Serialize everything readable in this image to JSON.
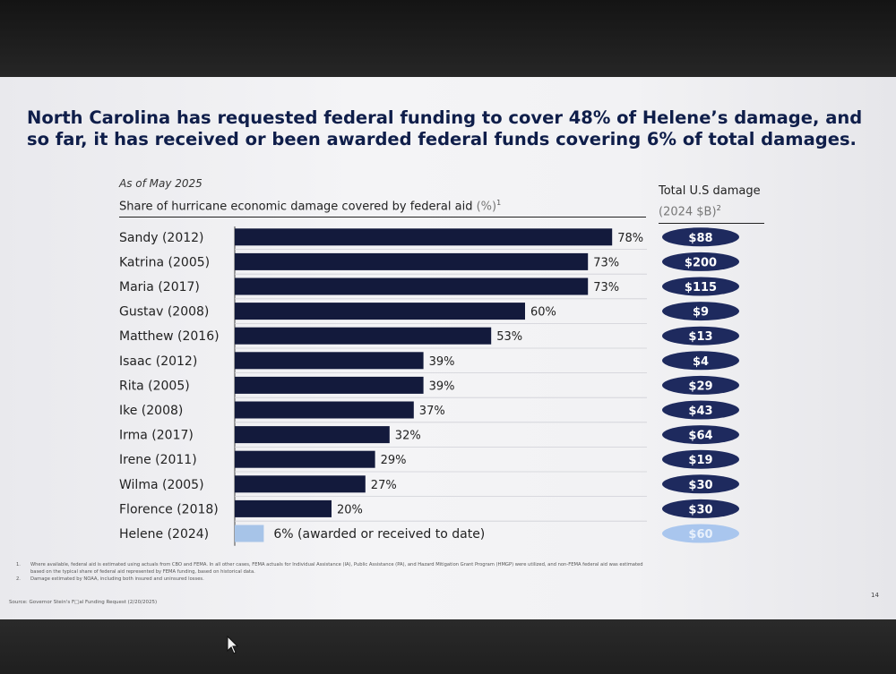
{
  "slide": {
    "title": "North Carolina has requested federal funding to cover 48% of Helene’s damage, and so far, it has received or been awarded federal funds covering 6% of total damages.",
    "subtitle": "As of May 2025",
    "chart_header": "Share of hurricane economic damage covered by federal aid",
    "chart_header_unit": "(%)",
    "chart_header_note": "1",
    "damage_header": "Total U.S damage",
    "damage_header_unit": "(2024 $B)",
    "damage_header_note": "2",
    "footnotes": [
      {
        "num": "1.",
        "text": "Where available, federal aid is estimated using actuals from CBO and FEMA. In all other cases, FEMA actuals for Individual Assistance (IA), Public Assistance (PA), and Hazard Mitigation Grant Program (HMGP) were utilized, and non-FEMA federal aid was estimated",
        "cont": "based on the typical share of federal aid represented by FEMA funding, based on historical data."
      },
      {
        "num": "2.",
        "text": "Damage estimated by NOAA, including both insured and uninsured losses.",
        "cont": ""
      }
    ],
    "source": "Source: Governor Stein's F□al Funding Request (2/20/2025)",
    "page_number": "14"
  },
  "colors": {
    "bar": "#131a3c",
    "bar_highlight": "#a7c4e8",
    "pill": "#1e2a5e",
    "pill_highlight": "#a9c6ee",
    "title": "#0f1e4a"
  },
  "chart_data": {
    "type": "bar",
    "orientation": "horizontal",
    "categories": [
      "Sandy (2012)",
      "Katrina (2005)",
      "Maria (2017)",
      "Gustav (2008)",
      "Matthew (2016)",
      "Isaac (2012)",
      "Rita (2005)",
      "Ike (2008)",
      "Irma (2017)",
      "Irene (2011)",
      "Wilma (2005)",
      "Florence (2018)",
      "Helene (2024)"
    ],
    "values": [
      78,
      73,
      73,
      60,
      53,
      39,
      39,
      37,
      32,
      29,
      27,
      20,
      6
    ],
    "value_labels": [
      "78%",
      "73%",
      "73%",
      "60%",
      "53%",
      "39%",
      "39%",
      "37%",
      "32%",
      "29%",
      "27%",
      "20%",
      "6% (awarded or received to date)"
    ],
    "highlight": "Helene (2024)",
    "damage_labels": [
      "$88",
      "$200",
      "$115",
      "$9",
      "$13",
      "$4",
      "$29",
      "$43",
      "$64",
      "$19",
      "$30",
      "$30",
      "$60"
    ],
    "damage_values": [
      88,
      200,
      115,
      9,
      13,
      4,
      29,
      43,
      64,
      19,
      30,
      30,
      60
    ],
    "xlim": [
      0,
      100
    ],
    "grid": false,
    "legend": "none"
  }
}
